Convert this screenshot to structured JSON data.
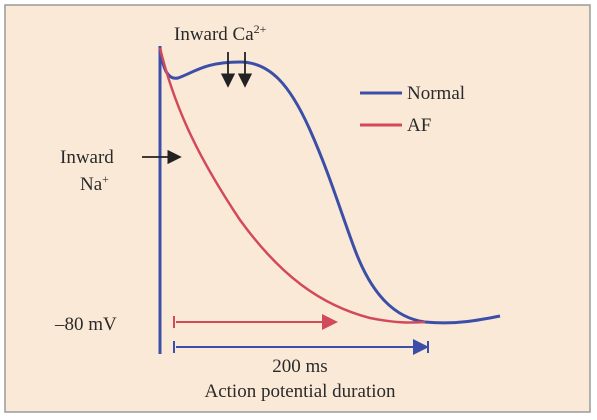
{
  "annotations": {
    "ca_label": "Inward Ca",
    "ca_sup": "2+",
    "na_label_1": "Inward",
    "na_label_2": "Na",
    "na_sup": "+",
    "resting": "–80 mV",
    "duration": "200 ms",
    "duration_caption": "Action potential duration"
  },
  "legend": [
    {
      "name": "Normal",
      "color": "#3b4fa8"
    },
    {
      "name": "AF",
      "color": "#d24a5a"
    }
  ]
}
